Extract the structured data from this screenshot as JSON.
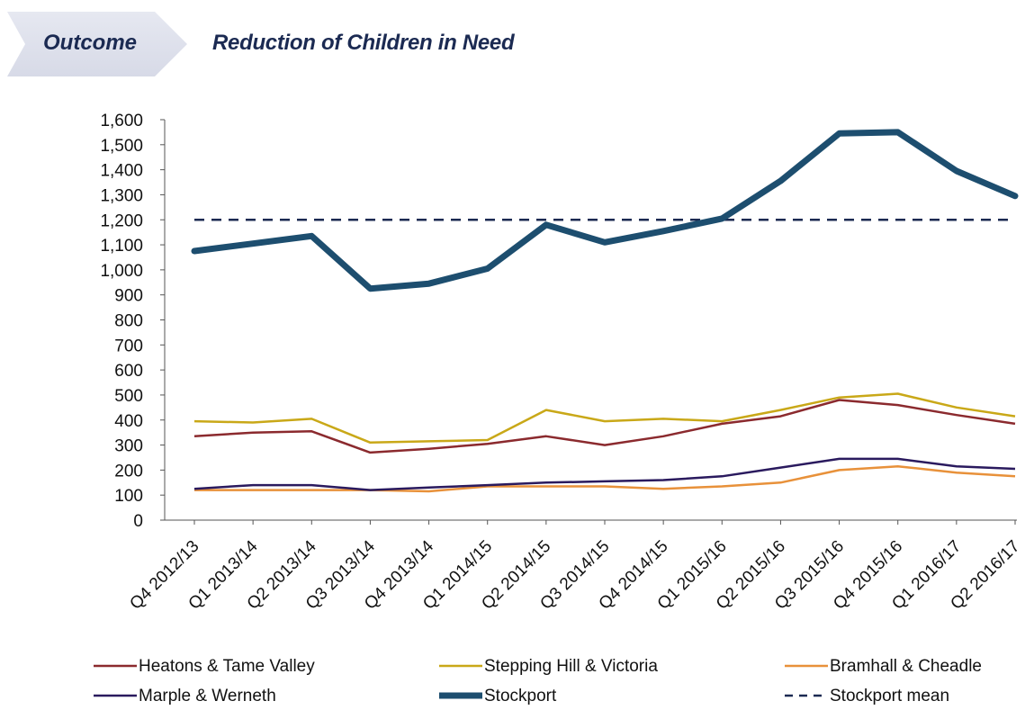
{
  "header": {
    "section_label": "Outcome",
    "title": "Reduction of Children in Need"
  },
  "chart_data": {
    "type": "line",
    "title": "",
    "xlabel": "",
    "ylabel": "",
    "ylim": [
      0,
      1600
    ],
    "yticks": [
      "0",
      "100",
      "200",
      "300",
      "400",
      "500",
      "600",
      "700",
      "800",
      "900",
      "1,000",
      "1,100",
      "1,200",
      "1,300",
      "1,400",
      "1,500",
      "1,600"
    ],
    "grid": false,
    "legend_position": "bottom",
    "categories": [
      "Q4 2012/13",
      "Q1 2013/14",
      "Q2 2013/14",
      "Q3 2013/14",
      "Q4 2013/14",
      "Q1 2014/15",
      "Q2 2014/15",
      "Q3 2014/15",
      "Q4 2014/15",
      "Q1 2015/16",
      "Q2 2015/16",
      "Q3 2015/16",
      "Q4 2015/16",
      "Q1 2016/17",
      "Q2 2016/17"
    ],
    "series": [
      {
        "name": "Heatons & Tame Valley",
        "color": "#8b2a2e",
        "style": "thin",
        "values": [
          335,
          350,
          355,
          270,
          285,
          305,
          335,
          300,
          335,
          385,
          415,
          480,
          460,
          420,
          385
        ]
      },
      {
        "name": "Stepping Hill & Victoria",
        "color": "#c9a818",
        "style": "thin",
        "values": [
          395,
          390,
          405,
          310,
          315,
          320,
          440,
          395,
          405,
          395,
          440,
          490,
          505,
          450,
          415
        ]
      },
      {
        "name": "Bramhall & Cheadle",
        "color": "#e8913a",
        "style": "thin",
        "values": [
          120,
          120,
          120,
          120,
          115,
          135,
          135,
          135,
          125,
          135,
          150,
          200,
          215,
          190,
          175
        ]
      },
      {
        "name": "Marple & Werneth",
        "color": "#2a1a5e",
        "style": "thin",
        "values": [
          125,
          140,
          140,
          120,
          130,
          140,
          150,
          155,
          160,
          175,
          210,
          245,
          245,
          215,
          205
        ]
      },
      {
        "name": "Stockport",
        "color": "#1d4e6f",
        "style": "thick",
        "values": [
          1075,
          1105,
          1135,
          925,
          945,
          1005,
          1180,
          1110,
          1155,
          1205,
          1355,
          1545,
          1550,
          1395,
          1295
        ]
      },
      {
        "name": "Stockport mean",
        "color": "#1b2a52",
        "style": "dashed",
        "values": [
          1200,
          1200,
          1200,
          1200,
          1200,
          1200,
          1200,
          1200,
          1200,
          1200,
          1200,
          1200,
          1200,
          1200,
          1200
        ]
      }
    ]
  }
}
